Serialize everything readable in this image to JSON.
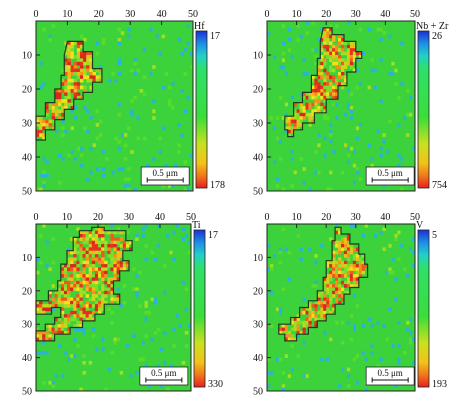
{
  "chart_data": [
    {
      "type": "heatmap",
      "element_label": "Hf",
      "scale_min": "17",
      "scale_max": "178",
      "x_ticks": [
        "0",
        "10",
        "20",
        "30",
        "40",
        "50"
      ],
      "y_ticks": [
        "10",
        "20",
        "30",
        "40",
        "50"
      ],
      "xlim": [
        0,
        50
      ],
      "ylim": [
        0,
        50
      ],
      "scale_bar": "0.5 μm",
      "region_outline": [
        [
          10,
          6
        ],
        [
          15,
          6
        ],
        [
          15,
          9
        ],
        [
          18,
          9
        ],
        [
          18,
          14
        ],
        [
          21,
          14
        ],
        [
          21,
          18
        ],
        [
          18,
          18
        ],
        [
          18,
          21
        ],
        [
          15,
          21
        ],
        [
          15,
          23
        ],
        [
          12,
          23
        ],
        [
          12,
          26
        ],
        [
          9,
          26
        ],
        [
          9,
          29
        ],
        [
          6,
          29
        ],
        [
          6,
          32
        ],
        [
          3,
          32
        ],
        [
          3,
          35
        ],
        [
          0,
          35
        ],
        [
          0,
          28
        ],
        [
          3,
          28
        ],
        [
          3,
          24
        ],
        [
          6,
          24
        ],
        [
          6,
          20
        ],
        [
          8,
          20
        ],
        [
          8,
          16
        ],
        [
          9,
          16
        ],
        [
          9,
          10
        ]
      ]
    },
    {
      "type": "heatmap",
      "element_label": "Nb + Zr",
      "scale_min": "26",
      "scale_max": "754",
      "x_ticks": [
        "0",
        "10",
        "20",
        "30",
        "40",
        "50"
      ],
      "y_ticks": [
        "10",
        "20",
        "30",
        "40",
        "50"
      ],
      "xlim": [
        0,
        50
      ],
      "ylim": [
        0,
        50
      ],
      "scale_bar": "0.5 μm",
      "region_outline": [
        [
          19,
          2
        ],
        [
          22,
          2
        ],
        [
          22,
          4
        ],
        [
          26,
          4
        ],
        [
          26,
          6
        ],
        [
          30,
          6
        ],
        [
          30,
          9
        ],
        [
          32,
          9
        ],
        [
          32,
          11
        ],
        [
          30,
          11
        ],
        [
          30,
          15
        ],
        [
          27,
          15
        ],
        [
          27,
          19
        ],
        [
          24,
          19
        ],
        [
          24,
          23
        ],
        [
          20,
          23
        ],
        [
          20,
          27
        ],
        [
          16,
          27
        ],
        [
          16,
          30
        ],
        [
          12,
          30
        ],
        [
          12,
          32
        ],
        [
          9,
          32
        ],
        [
          9,
          34
        ],
        [
          7,
          34
        ],
        [
          7,
          32
        ],
        [
          6,
          32
        ],
        [
          6,
          28
        ],
        [
          9,
          28
        ],
        [
          9,
          24
        ],
        [
          12,
          24
        ],
        [
          12,
          21
        ],
        [
          15,
          21
        ],
        [
          15,
          16
        ],
        [
          17,
          16
        ],
        [
          17,
          11
        ],
        [
          18,
          11
        ],
        [
          18,
          6
        ]
      ]
    },
    {
      "type": "heatmap",
      "element_label": "Ti",
      "scale_min": "17",
      "scale_max": "330",
      "x_ticks": [
        "0",
        "10",
        "20",
        "30",
        "40",
        "50"
      ],
      "y_ticks": [
        "10",
        "20",
        "30",
        "40",
        "50"
      ],
      "xlim": [
        0,
        50
      ],
      "ylim": [
        0,
        50
      ],
      "scale_bar": "0.5 μm",
      "region_outline": [
        [
          14,
          2
        ],
        [
          18,
          2
        ],
        [
          18,
          1
        ],
        [
          22,
          1
        ],
        [
          22,
          2
        ],
        [
          29,
          2
        ],
        [
          29,
          5
        ],
        [
          31,
          5
        ],
        [
          31,
          8
        ],
        [
          28,
          8
        ],
        [
          28,
          11
        ],
        [
          30,
          11
        ],
        [
          30,
          14
        ],
        [
          27,
          14
        ],
        [
          27,
          17
        ],
        [
          25,
          17
        ],
        [
          25,
          21
        ],
        [
          27,
          21
        ],
        [
          27,
          24
        ],
        [
          22,
          24
        ],
        [
          22,
          27
        ],
        [
          19,
          27
        ],
        [
          19,
          29
        ],
        [
          15,
          29
        ],
        [
          15,
          31
        ],
        [
          11,
          31
        ],
        [
          11,
          33
        ],
        [
          6,
          33
        ],
        [
          6,
          35
        ],
        [
          0,
          35
        ],
        [
          0,
          32
        ],
        [
          3,
          32
        ],
        [
          3,
          30
        ],
        [
          6,
          30
        ],
        [
          6,
          28
        ],
        [
          8,
          28
        ],
        [
          8,
          25
        ],
        [
          5,
          25
        ],
        [
          5,
          27
        ],
        [
          0,
          27
        ],
        [
          0,
          23
        ],
        [
          4,
          23
        ],
        [
          4,
          20
        ],
        [
          7,
          20
        ],
        [
          7,
          17
        ],
        [
          8,
          17
        ],
        [
          8,
          12
        ],
        [
          10,
          12
        ],
        [
          10,
          8
        ],
        [
          12,
          8
        ],
        [
          12,
          4
        ],
        [
          14,
          4
        ]
      ]
    },
    {
      "type": "heatmap",
      "element_label": "V",
      "scale_min": "5",
      "scale_max": "193",
      "x_ticks": [
        "0",
        "10",
        "20",
        "30",
        "40",
        "50"
      ],
      "y_ticks": [
        "10",
        "20",
        "30",
        "40",
        "50"
      ],
      "xlim": [
        0,
        50
      ],
      "ylim": [
        0,
        50
      ],
      "scale_bar": "0.5 μm",
      "region_outline": [
        [
          23,
          1
        ],
        [
          25,
          1
        ],
        [
          25,
          3
        ],
        [
          28,
          3
        ],
        [
          28,
          6
        ],
        [
          31,
          6
        ],
        [
          31,
          9
        ],
        [
          33,
          9
        ],
        [
          33,
          12
        ],
        [
          34,
          12
        ],
        [
          34,
          16
        ],
        [
          31,
          16
        ],
        [
          31,
          19
        ],
        [
          28,
          19
        ],
        [
          28,
          21
        ],
        [
          26,
          21
        ],
        [
          26,
          24
        ],
        [
          23,
          24
        ],
        [
          23,
          27
        ],
        [
          20,
          27
        ],
        [
          20,
          29
        ],
        [
          17,
          29
        ],
        [
          17,
          31
        ],
        [
          14,
          31
        ],
        [
          14,
          33
        ],
        [
          10,
          33
        ],
        [
          10,
          35
        ],
        [
          6,
          35
        ],
        [
          6,
          33
        ],
        [
          4,
          33
        ],
        [
          4,
          30
        ],
        [
          8,
          30
        ],
        [
          8,
          28
        ],
        [
          11,
          28
        ],
        [
          11,
          25
        ],
        [
          14,
          25
        ],
        [
          14,
          23
        ],
        [
          17,
          23
        ],
        [
          17,
          20
        ],
        [
          19,
          20
        ],
        [
          19,
          16
        ],
        [
          20,
          16
        ],
        [
          20,
          11
        ],
        [
          22,
          11
        ],
        [
          22,
          5
        ],
        [
          23,
          5
        ]
      ]
    }
  ]
}
